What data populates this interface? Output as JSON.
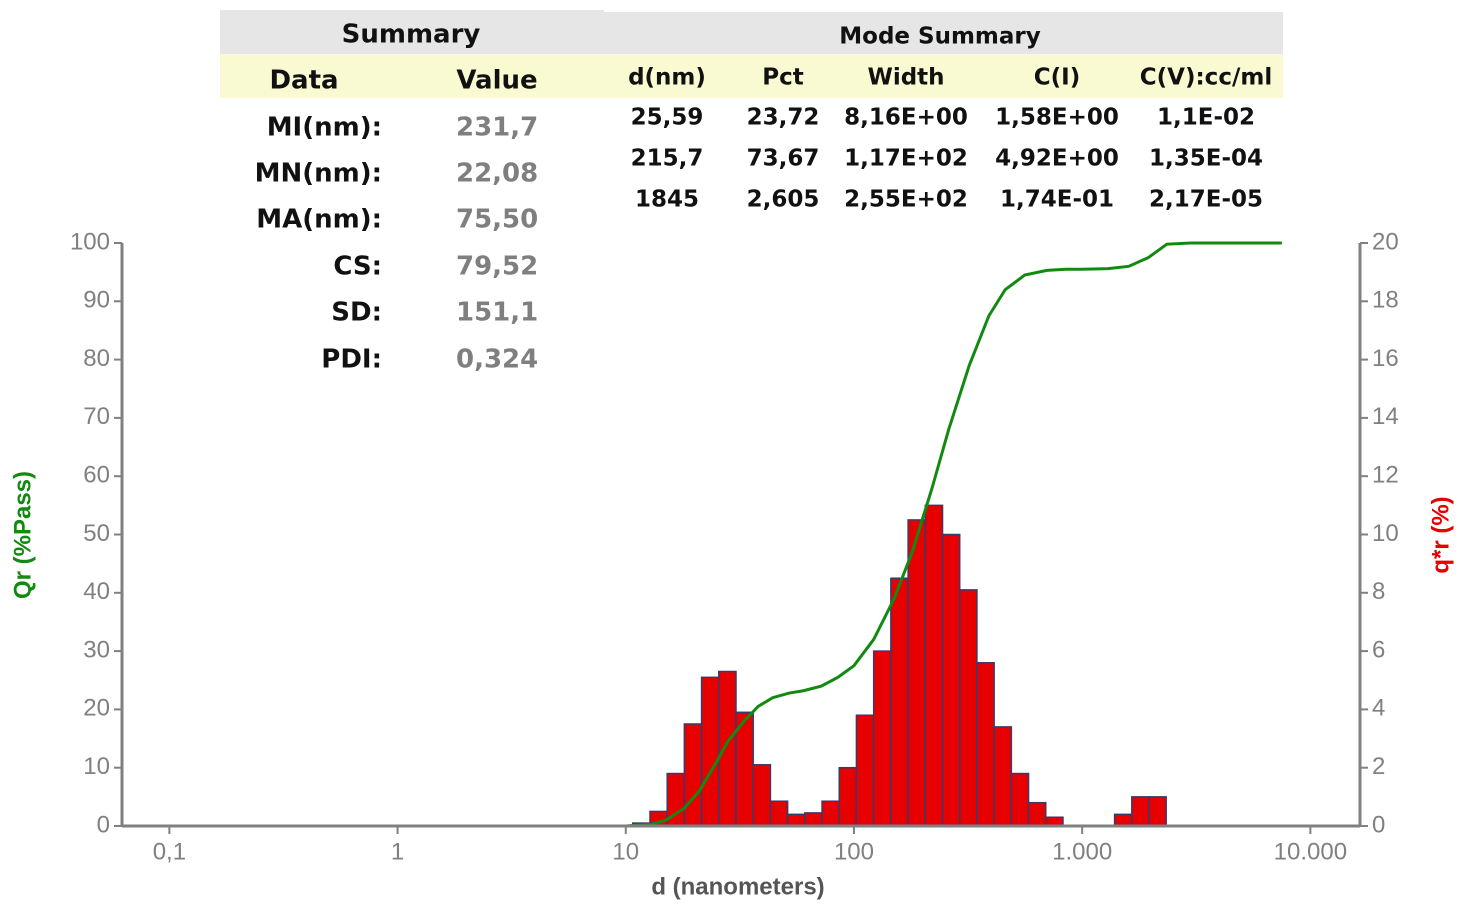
{
  "summary": {
    "title": "Summary",
    "columns": [
      "Data",
      "Value"
    ],
    "rows": [
      [
        "MI(nm):",
        "231,7"
      ],
      [
        "MN(nm):",
        "22,08"
      ],
      [
        "MA(nm):",
        "75,50"
      ],
      [
        "CS:",
        "79,52"
      ],
      [
        "SD:",
        "151,1"
      ],
      [
        "PDI:",
        "0,324"
      ]
    ]
  },
  "mode_summary": {
    "title": "Mode Summary",
    "columns": [
      "d(nm)",
      "Pct",
      "Width",
      "C(I)",
      "C(V):cc/ml"
    ],
    "rows": [
      [
        "25,59",
        "23,72",
        "8,16E+00",
        "1,58E+00",
        "1,1E-02"
      ],
      [
        "215,7",
        "73,67",
        "1,17E+02",
        "4,92E+00",
        "1,35E-04"
      ],
      [
        "1845",
        "2,605",
        "2,55E+02",
        "1,74E-01",
        "2,17E-05"
      ]
    ]
  },
  "chart_data": {
    "type": "combo",
    "x_label": "d (nanometers)",
    "y_label": "Qr (%Pass)",
    "y2_label": "q*r (%)",
    "log_x": true,
    "xlim": [
      0.062,
      16500
    ],
    "xticks": [
      {
        "value": 0.1,
        "label": "0,1"
      },
      1,
      10,
      100,
      {
        "value": 1000,
        "label": "1.000"
      },
      {
        "value": 10000,
        "label": "10.000"
      }
    ],
    "ylim": [
      0,
      100
    ],
    "yticks": [
      0,
      10,
      20,
      30,
      40,
      50,
      60,
      70,
      80,
      90,
      100
    ],
    "y2lim": [
      0,
      20
    ],
    "y2ticks": [
      0,
      2,
      4,
      6,
      8,
      10,
      12,
      14,
      16,
      18,
      20
    ],
    "series": [
      {
        "type": "histogram",
        "axis": "y2",
        "color": "#e60000",
        "bins": [
          10.73,
          12.77,
          15.19,
          18.06,
          21.49,
          25.56,
          30.41,
          36.18,
          43.04,
          51.2,
          60.91,
          72.46,
          86.2,
          102.5,
          122,
          145.1,
          172.7,
          205.4,
          244.4,
          290.7,
          345.8,
          411.4,
          489.4,
          582.2,
          692.6,
          823.9,
          980,
          1166,
          1387,
          1650,
          1962,
          2334
        ],
        "values": [
          0.1,
          0.5,
          1.8,
          3.5,
          5.1,
          5.3,
          3.9,
          2.1,
          0.85,
          0.4,
          0.45,
          0.85,
          2.0,
          3.8,
          6.0,
          8.5,
          10.5,
          11.0,
          10.0,
          8.1,
          5.6,
          3.4,
          1.8,
          0.8,
          0.3,
          0,
          0,
          0,
          0.4,
          1.0,
          1.0
        ]
      },
      {
        "type": "line",
        "color": "#128a12",
        "x": [
          1,
          10,
          13,
          15,
          18,
          21,
          25,
          28,
          33,
          38,
          44,
          52,
          60,
          72,
          85,
          100,
          122,
          150,
          180,
          220,
          260,
          320,
          390,
          460,
          560,
          700,
          850,
          1000,
          1300,
          1600,
          1950,
          2350,
          3000,
          5000,
          7500
        ],
        "values": [
          0,
          0,
          0.3,
          1,
          3,
          6,
          11,
          14.5,
          18,
          20.5,
          22,
          22.8,
          23.2,
          24,
          25.5,
          27.5,
          32,
          39,
          47,
          58,
          68,
          79,
          87.5,
          92,
          94.5,
          95.3,
          95.5,
          95.5,
          95.6,
          96,
          97.5,
          99.8,
          100,
          100,
          100
        ]
      }
    ]
  }
}
